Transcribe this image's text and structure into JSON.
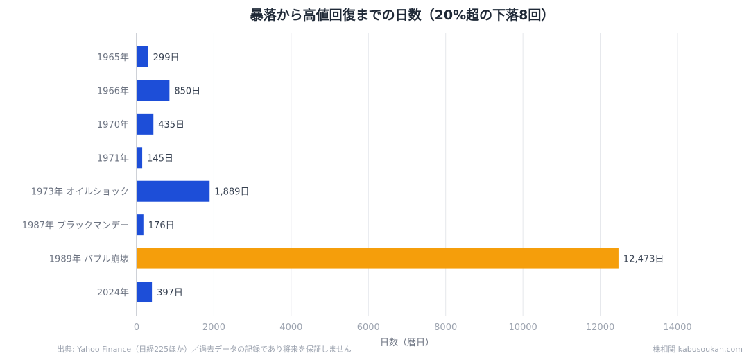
{
  "chart_data": {
    "type": "bar",
    "orientation": "horizontal",
    "title": "暴落から高値回復までの日数（20%超の下落8回）",
    "xlabel": "日数（暦日）",
    "ylabel": "",
    "xlim": [
      0,
      14000
    ],
    "xticks": [
      0,
      2000,
      4000,
      6000,
      8000,
      10000,
      12000,
      14000
    ],
    "grid": true,
    "categories": [
      "1965年",
      "1966年",
      "1970年",
      "1971年",
      "1973年 オイルショック",
      "1987年 ブラックマンデー",
      "1989年 バブル崩壊",
      "2024年"
    ],
    "values": [
      299,
      850,
      435,
      145,
      1889,
      176,
      12473,
      397
    ],
    "value_labels": [
      "299日",
      "850日",
      "435日",
      "145日",
      "1,889日",
      "176日",
      "12,473日",
      "397日"
    ],
    "colors": [
      "#1d4ed8",
      "#1d4ed8",
      "#1d4ed8",
      "#1d4ed8",
      "#1d4ed8",
      "#1d4ed8",
      "#f59e0b",
      "#1d4ed8"
    ]
  },
  "footer": {
    "source": "出典: Yahoo Finance（日経225ほか）／過去データの記録であり将来を保証しません",
    "site": "株相関 kabusoukan.com"
  },
  "colors": {
    "bar_default": "#1d4ed8",
    "bar_highlight": "#f59e0b",
    "grid": "#e5e7eb"
  }
}
